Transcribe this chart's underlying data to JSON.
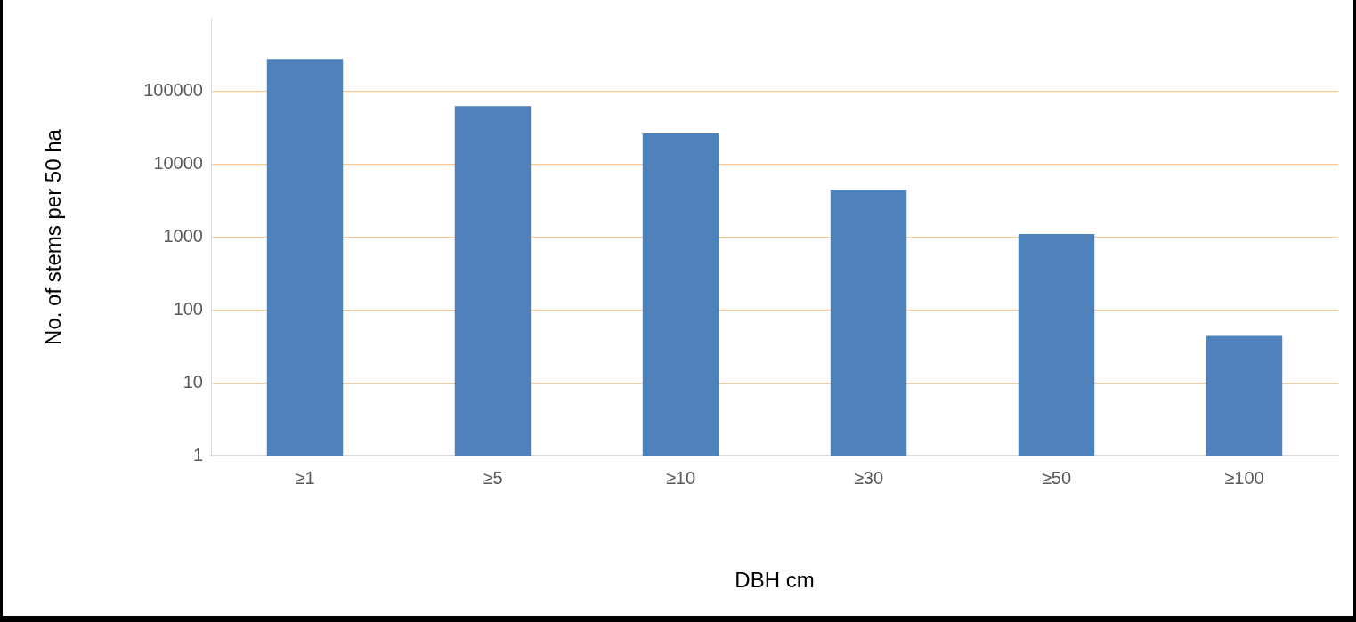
{
  "chart_data": {
    "type": "bar",
    "xlabel": "DBH cm",
    "ylabel": "No. of stems per 50 ha",
    "categories": [
      "≥1",
      "≥5",
      "≥10",
      "≥30",
      "≥50",
      "≥100"
    ],
    "values": [
      280000,
      63000,
      26600,
      4470,
      1100,
      44
    ],
    "color": "#4f81bd",
    "log": true,
    "ylim": [
      1,
      1000000
    ],
    "yticks": [
      1,
      10,
      100,
      1000,
      10000,
      100000
    ],
    "grid": "y"
  }
}
